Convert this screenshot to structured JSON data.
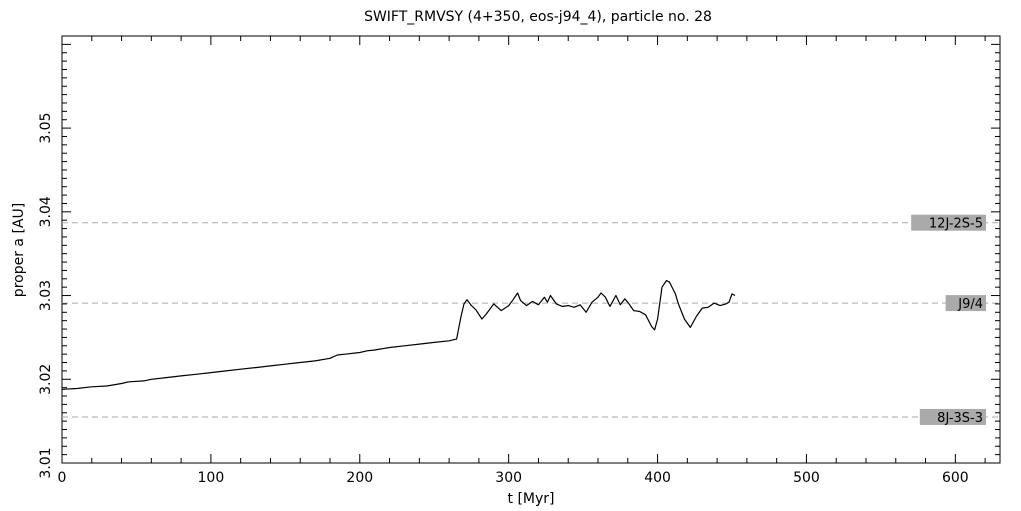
{
  "chart_data": {
    "type": "line",
    "title": "SWIFT_RMVSY (4+350, eos-j94_4), particle no. 28",
    "xlabel": "t [Myr]",
    "ylabel": "proper a [AU]",
    "xlim": [
      0,
      630
    ],
    "ylim": [
      3.01,
      3.061
    ],
    "x_ticks": [
      0,
      100,
      200,
      300,
      400,
      500,
      600
    ],
    "y_ticks": [
      3.01,
      3.02,
      3.03,
      3.04,
      3.05
    ],
    "x_tick_labels": [
      "0",
      "100",
      "200",
      "300",
      "400",
      "500",
      "600"
    ],
    "y_tick_labels": [
      "3.01",
      "3.02",
      "3.03",
      "3.04",
      "3.05"
    ],
    "grid": false,
    "resonances": [
      {
        "label": "12J-2S-5",
        "a": 3.0387
      },
      {
        "label": "J9/4",
        "a": 3.0291
      },
      {
        "label": "8J-3S-3",
        "a": 3.0155
      }
    ],
    "series": [
      {
        "x": [
          0,
          10,
          20,
          30,
          40,
          45,
          55,
          60,
          70,
          80,
          90,
          100,
          110,
          120,
          130,
          140,
          150,
          160,
          170,
          180,
          185,
          190,
          200,
          205,
          210,
          220,
          230,
          240,
          250,
          260,
          265,
          268,
          270,
          272,
          275,
          278,
          282,
          285,
          290,
          295,
          300,
          303,
          306,
          308,
          312,
          316,
          320,
          324,
          326,
          328,
          332,
          336,
          340,
          344,
          348,
          352,
          356,
          360,
          362,
          365,
          368,
          372,
          375,
          378,
          380,
          384,
          388,
          392,
          396,
          398,
          400,
          403,
          406,
          408,
          412,
          414,
          418,
          422,
          426,
          430,
          434,
          438,
          442,
          446,
          448,
          450,
          452
        ],
        "y": [
          3.0188,
          3.0189,
          3.0191,
          3.0192,
          3.0195,
          3.0197,
          3.0198,
          3.02,
          3.0202,
          3.0204,
          3.0206,
          3.0208,
          3.021,
          3.0212,
          3.0214,
          3.0216,
          3.0218,
          3.022,
          3.0222,
          3.0225,
          3.0229,
          3.023,
          3.0232,
          3.0234,
          3.0235,
          3.0238,
          3.024,
          3.0242,
          3.0244,
          3.0246,
          3.0248,
          3.0275,
          3.029,
          3.0295,
          3.0288,
          3.0283,
          3.0272,
          3.0278,
          3.029,
          3.0282,
          3.0288,
          3.0295,
          3.0303,
          3.0294,
          3.0288,
          3.0293,
          3.0289,
          3.0298,
          3.0292,
          3.03,
          3.029,
          3.0287,
          3.0288,
          3.0286,
          3.0289,
          3.028,
          3.0292,
          3.0298,
          3.0303,
          3.0298,
          3.0287,
          3.03,
          3.0289,
          3.0296,
          3.0292,
          3.0282,
          3.0281,
          3.0277,
          3.0263,
          3.0259,
          3.0272,
          3.031,
          3.0318,
          3.0316,
          3.0302,
          3.029,
          3.0272,
          3.0262,
          3.0275,
          3.0285,
          3.0286,
          3.0291,
          3.0288,
          3.029,
          3.0292,
          3.0302,
          3.03
        ]
      }
    ]
  },
  "colors": {
    "line": "#000000",
    "resonance_line": "#aaaaaa",
    "label_box": "#aaaaaa"
  }
}
